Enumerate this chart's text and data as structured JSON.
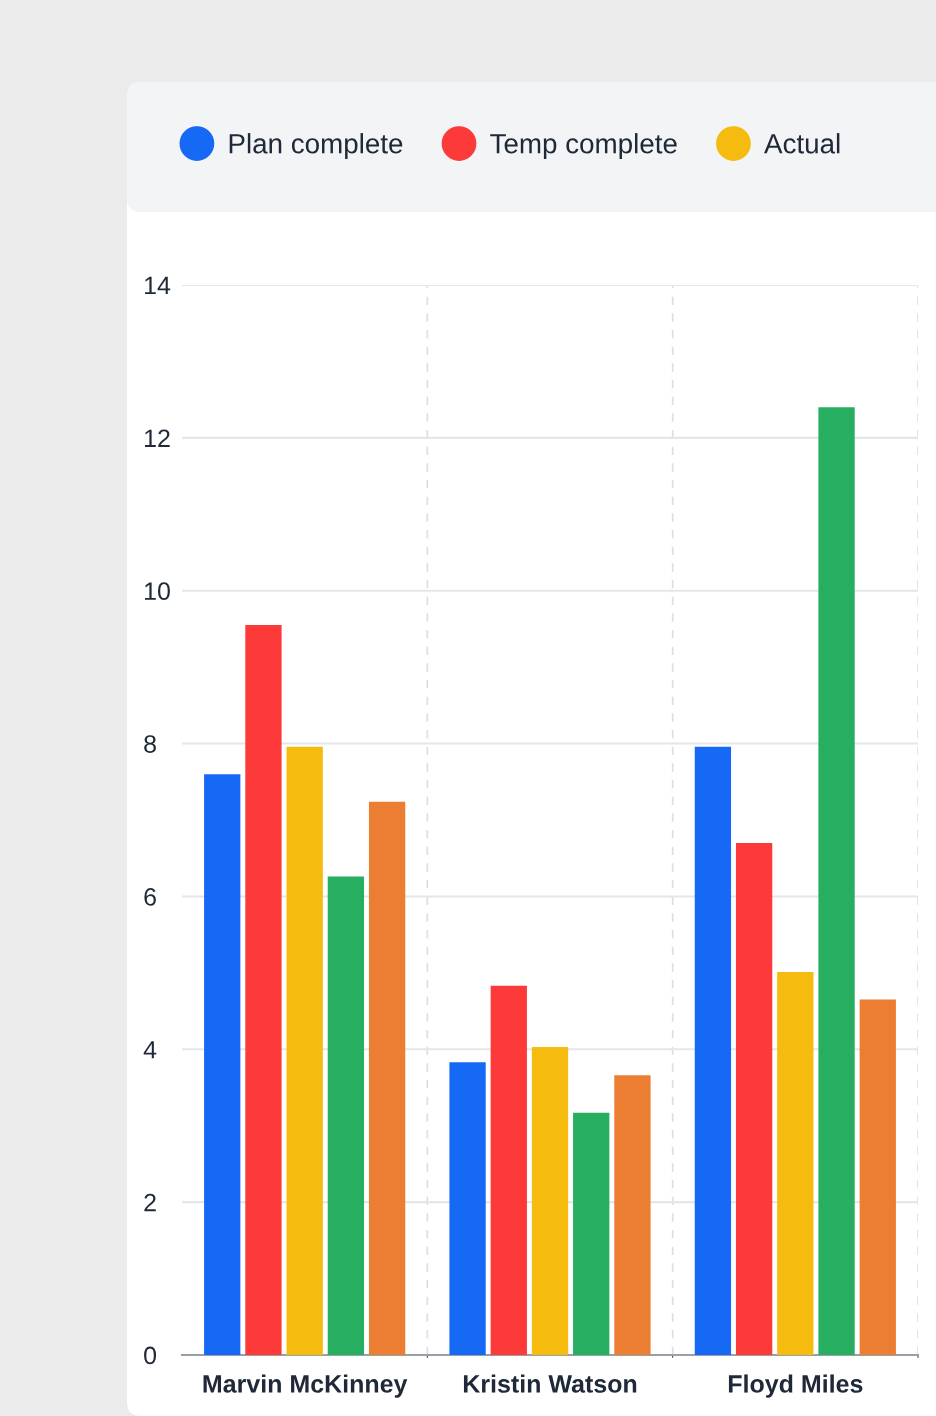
{
  "chart_data": {
    "type": "bar",
    "categories": [
      "Marvin McKinney",
      "Kristin Watson",
      "Floyd Miles"
    ],
    "series": [
      {
        "name": "Plan complete",
        "color": "#1669f5",
        "values": [
          7.6,
          3.83,
          7.96
        ]
      },
      {
        "name": "Temp complete",
        "color": "#fd3a3a",
        "values": [
          9.55,
          4.83,
          6.7
        ]
      },
      {
        "name": "Actual",
        "color": "#f5bb0f",
        "values": [
          7.96,
          4.03,
          5.01
        ]
      },
      {
        "color": "#27ae60",
        "values": [
          6.26,
          3.17,
          12.4
        ]
      },
      {
        "color": "#ec7e33",
        "values": [
          7.24,
          3.66,
          4.65
        ]
      }
    ],
    "ylim": [
      0,
      14
    ],
    "yticks": [
      0,
      2,
      4,
      6,
      8,
      10,
      12,
      14
    ],
    "grid": "y",
    "legend": "top"
  }
}
